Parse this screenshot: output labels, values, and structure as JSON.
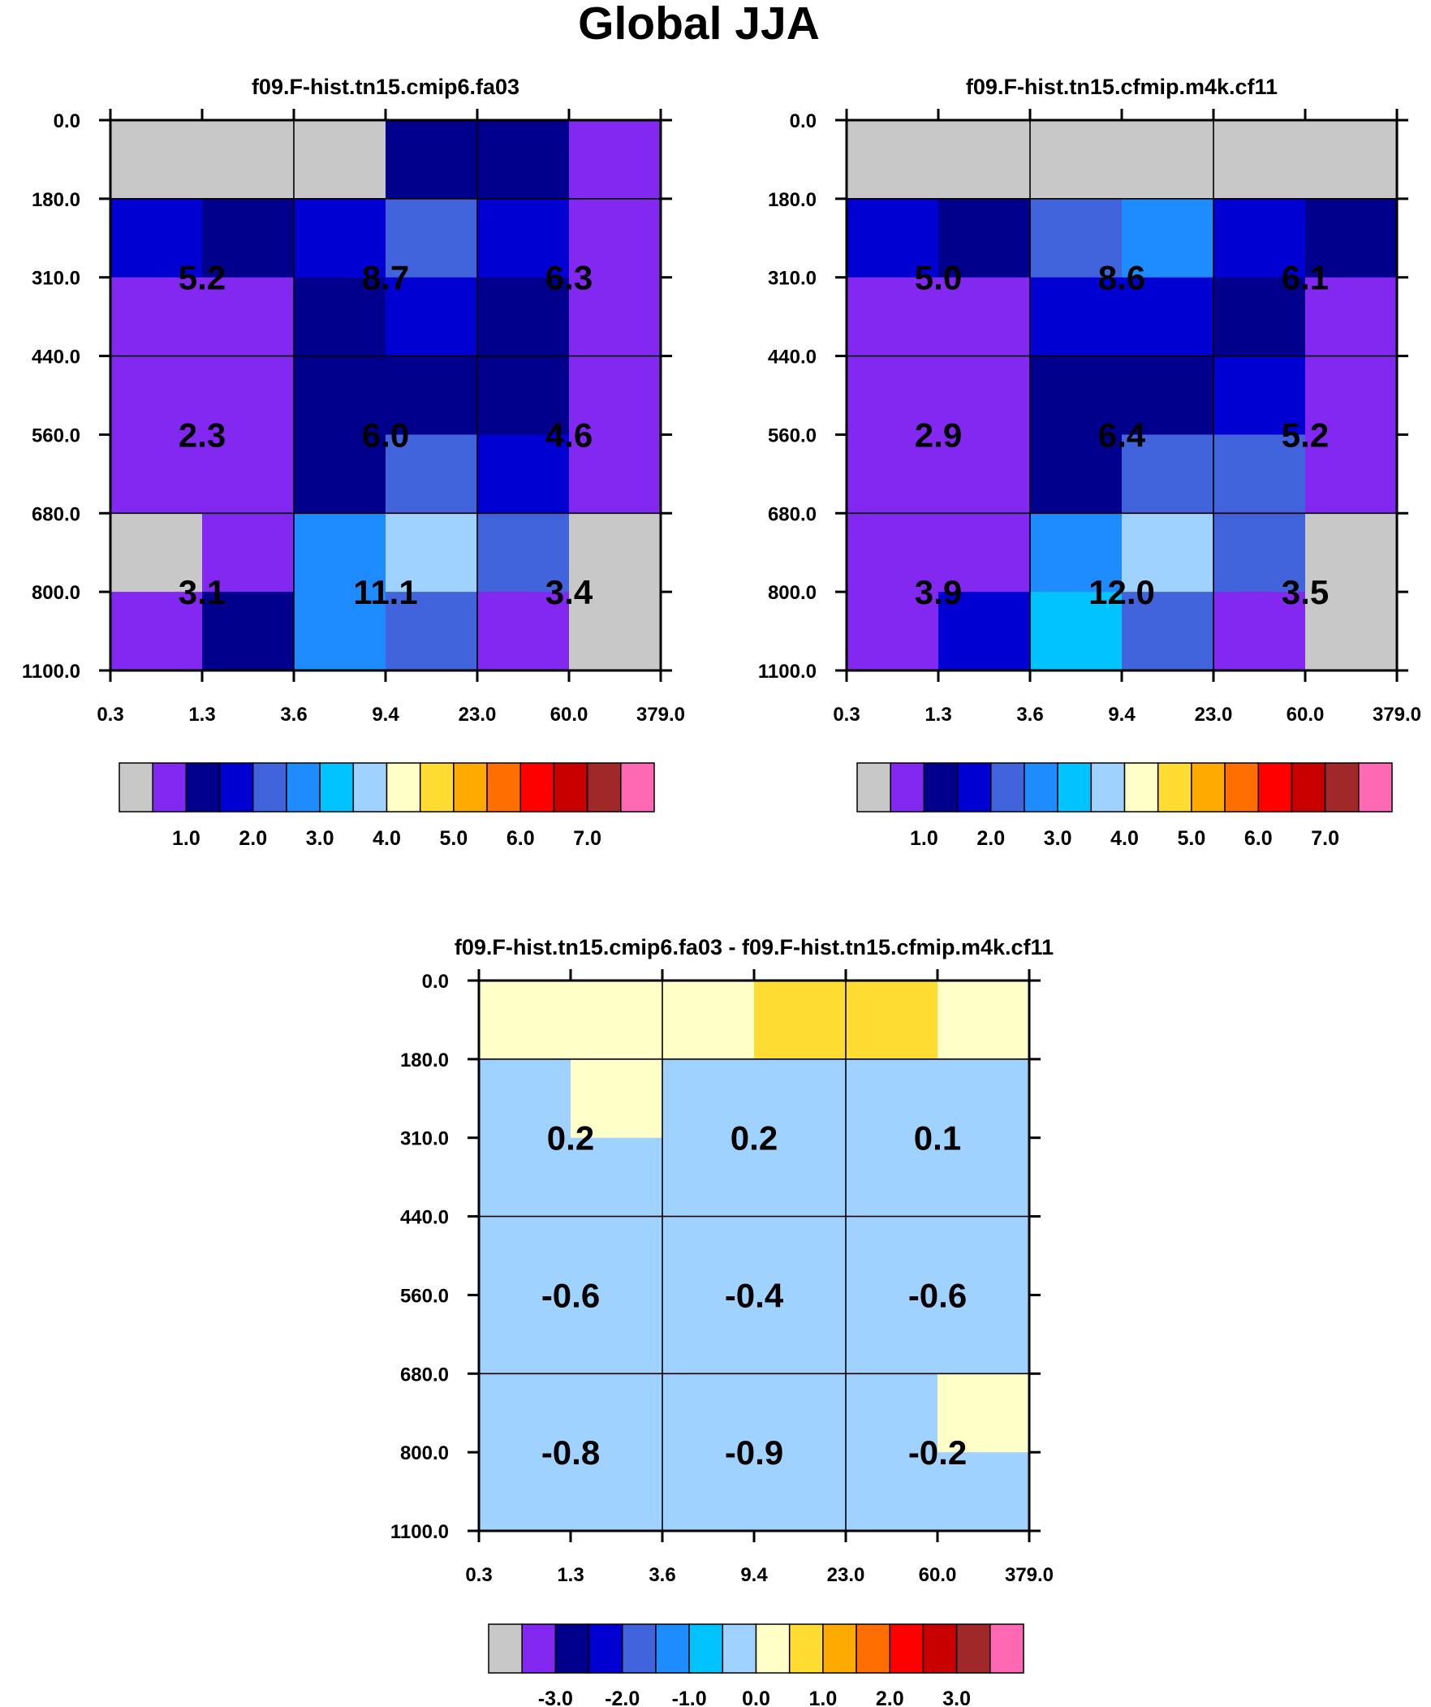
{
  "chart_data": [
    {
      "type": "heatmap",
      "figure_title": "Global JJA",
      "title": "f09.F-hist.tn15.cmip6.fa03",
      "x_ticks": [
        "0.3",
        "1.3",
        "3.6",
        "9.4",
        "23.0",
        "60.0",
        "379.0"
      ],
      "y_ticks": [
        "0.0",
        "180.0",
        "310.0",
        "440.0",
        "560.0",
        "680.0",
        "800.0",
        "1100.0"
      ],
      "cell_colors": [
        [
          0,
          0,
          0,
          2,
          2,
          1
        ],
        [
          3,
          2,
          3,
          4,
          3,
          1
        ],
        [
          1,
          1,
          2,
          3,
          2,
          1
        ],
        [
          1,
          1,
          2,
          2,
          2,
          1
        ],
        [
          1,
          1,
          2,
          4,
          3,
          1
        ],
        [
          0,
          1,
          5,
          7,
          4,
          0
        ],
        [
          1,
          2,
          5,
          4,
          1,
          0
        ]
      ],
      "labels": [
        {
          "text": "5.2",
          "col": 1,
          "row": 2
        },
        {
          "text": "8.7",
          "col": 3,
          "row": 2
        },
        {
          "text": "6.3",
          "col": 5,
          "row": 2
        },
        {
          "text": "2.3",
          "col": 1,
          "row": 4
        },
        {
          "text": "6.0",
          "col": 3,
          "row": 4
        },
        {
          "text": "4.6",
          "col": 5,
          "row": 4
        },
        {
          "text": "3.1",
          "col": 1,
          "row": 6
        },
        {
          "text": "11.1",
          "col": 3,
          "row": 6
        },
        {
          "text": "3.4",
          "col": 5,
          "row": 6
        }
      ],
      "colorbar_labels": [
        "1.0",
        "2.0",
        "3.0",
        "4.0",
        "5.0",
        "6.0",
        "7.0"
      ]
    },
    {
      "type": "heatmap",
      "title": "f09.F-hist.tn15.cfmip.m4k.cf11",
      "x_ticks": [
        "0.3",
        "1.3",
        "3.6",
        "9.4",
        "23.0",
        "60.0",
        "379.0"
      ],
      "y_ticks": [
        "0.0",
        "180.0",
        "310.0",
        "440.0",
        "560.0",
        "680.0",
        "800.0",
        "1100.0"
      ],
      "cell_colors": [
        [
          0,
          0,
          0,
          0,
          0,
          0
        ],
        [
          3,
          2,
          4,
          5,
          3,
          2
        ],
        [
          1,
          1,
          3,
          3,
          2,
          1
        ],
        [
          1,
          1,
          2,
          2,
          3,
          1
        ],
        [
          1,
          1,
          2,
          4,
          4,
          1
        ],
        [
          1,
          1,
          5,
          7,
          4,
          0
        ],
        [
          1,
          3,
          6,
          4,
          1,
          0
        ]
      ],
      "labels": [
        {
          "text": "5.0",
          "col": 1,
          "row": 2
        },
        {
          "text": "8.6",
          "col": 3,
          "row": 2
        },
        {
          "text": "6.1",
          "col": 5,
          "row": 2
        },
        {
          "text": "2.9",
          "col": 1,
          "row": 4
        },
        {
          "text": "6.4",
          "col": 3,
          "row": 4
        },
        {
          "text": "5.2",
          "col": 5,
          "row": 4
        },
        {
          "text": "3.9",
          "col": 1,
          "row": 6
        },
        {
          "text": "12.0",
          "col": 3,
          "row": 6
        },
        {
          "text": "3.5",
          "col": 5,
          "row": 6
        }
      ],
      "colorbar_labels": [
        "1.0",
        "2.0",
        "3.0",
        "4.0",
        "5.0",
        "6.0",
        "7.0"
      ]
    },
    {
      "type": "heatmap",
      "title": "f09.F-hist.tn15.cmip6.fa03 - f09.F-hist.tn15.cfmip.m4k.cf11",
      "x_ticks": [
        "0.3",
        "1.3",
        "3.6",
        "9.4",
        "23.0",
        "60.0",
        "379.0"
      ],
      "y_ticks": [
        "0.0",
        "180.0",
        "310.0",
        "440.0",
        "560.0",
        "680.0",
        "800.0",
        "1100.0"
      ],
      "cell_colors": [
        [
          8,
          8,
          8,
          9,
          9,
          8
        ],
        [
          7,
          8,
          7,
          7,
          7,
          7
        ],
        [
          7,
          7,
          7,
          7,
          7,
          7
        ],
        [
          7,
          7,
          7,
          7,
          7,
          7
        ],
        [
          7,
          7,
          7,
          7,
          7,
          7
        ],
        [
          7,
          7,
          7,
          7,
          7,
          8
        ],
        [
          7,
          7,
          7,
          7,
          7,
          7
        ]
      ],
      "labels": [
        {
          "text": "0.2",
          "col": 1,
          "row": 2
        },
        {
          "text": "0.2",
          "col": 3,
          "row": 2
        },
        {
          "text": "0.1",
          "col": 5,
          "row": 2
        },
        {
          "text": "-0.6",
          "col": 1,
          "row": 4
        },
        {
          "text": "-0.4",
          "col": 3,
          "row": 4
        },
        {
          "text": "-0.6",
          "col": 5,
          "row": 4
        },
        {
          "text": "-0.8",
          "col": 1,
          "row": 6
        },
        {
          "text": "-0.9",
          "col": 3,
          "row": 6
        },
        {
          "text": "-0.2",
          "col": 5,
          "row": 6
        }
      ],
      "colorbar_labels": [
        "-3.0",
        "-2.0",
        "-1.0",
        "0.0",
        "1.0",
        "2.0",
        "3.0"
      ]
    }
  ],
  "palette": [
    "#c8c8c8",
    "#8228f0",
    "#00008c",
    "#0000d2",
    "#4164dc",
    "#1e8cff",
    "#00c3ff",
    "#a0d2ff",
    "#ffffc8",
    "#ffdc32",
    "#ffaa00",
    "#ff6e00",
    "#ff0000",
    "#c80000",
    "#a02828",
    "#ff69b4"
  ]
}
